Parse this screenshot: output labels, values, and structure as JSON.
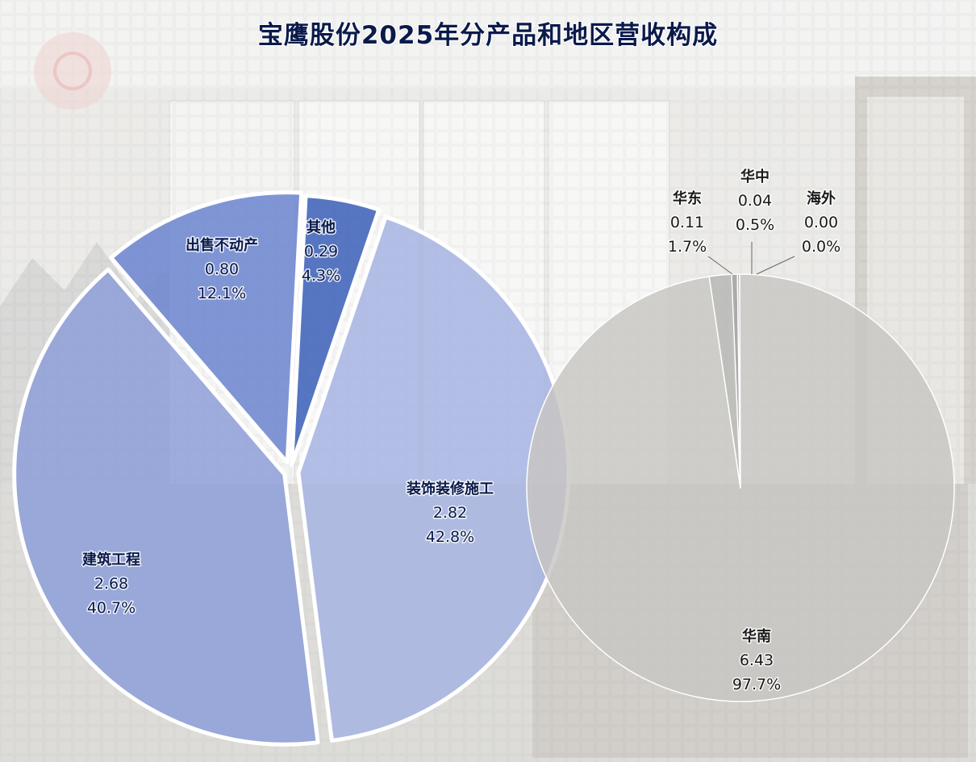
{
  "chart_data": [
    {
      "type": "pie",
      "title": "宝鹰股份2025年分产品和地区营收构成",
      "slices": [
        {
          "name": "其他",
          "value": 0.29,
          "percent": "4.3%",
          "value_label": "0.29",
          "color": "#3a5fb8"
        },
        {
          "name": "装饰装修施工",
          "value": 2.82,
          "percent": "42.8%",
          "value_label": "2.82",
          "color": "#a6b4e2"
        },
        {
          "name": "建筑工程",
          "value": 2.68,
          "percent": "40.7%",
          "value_label": "2.68",
          "color": "#8d9fd8"
        },
        {
          "name": "出售不动产",
          "value": 0.8,
          "percent": "12.1%",
          "value_label": "0.80",
          "color": "#6b84cf"
        }
      ]
    },
    {
      "type": "pie",
      "title": "",
      "slices": [
        {
          "name": "华中",
          "value": 0.04,
          "percent": "0.5%",
          "value_label": "0.04",
          "color": "#9c9c9c"
        },
        {
          "name": "海外",
          "value": 0.0,
          "percent": "0.0%",
          "value_label": "0.00",
          "color": "#aaaaaa"
        },
        {
          "name": "华南",
          "value": 6.43,
          "percent": "97.7%",
          "value_label": "6.43",
          "color": "#c8c6c2"
        },
        {
          "name": "华东",
          "value": 0.11,
          "percent": "1.7%",
          "value_label": "0.11",
          "color": "#b4b4b2"
        }
      ]
    }
  ]
}
